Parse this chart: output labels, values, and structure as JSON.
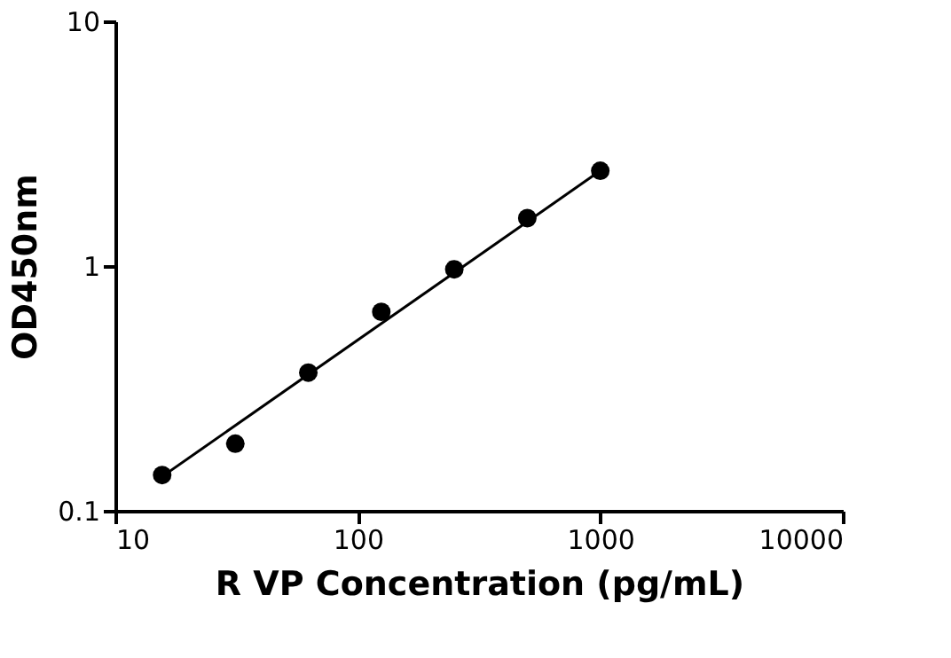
{
  "chart_data": {
    "type": "scatter",
    "xlabel": "R VP Concentration (pg/mL)",
    "ylabel": "OD450nm",
    "log": "xy",
    "xlim": [
      10,
      10000
    ],
    "xticks": [
      10,
      100,
      1000,
      10000
    ],
    "ylim": [
      0.1,
      10
    ],
    "yticks": [
      0.1,
      1,
      10
    ],
    "grid": false,
    "legend": false,
    "series": [
      {
        "color": "#000000",
        "marker": "circle",
        "x": [
          15.6,
          31.25,
          62.5,
          125,
          250,
          500,
          1000
        ],
        "values": [
          0.14,
          0.188,
          0.367,
          0.65,
          0.97,
          1.57,
          2.45
        ]
      },
      {
        "type": "line",
        "color": "#000000",
        "line_style": "solid",
        "x": [
          15.6,
          1000
        ],
        "values": [
          0.138,
          2.45
        ]
      }
    ]
  }
}
